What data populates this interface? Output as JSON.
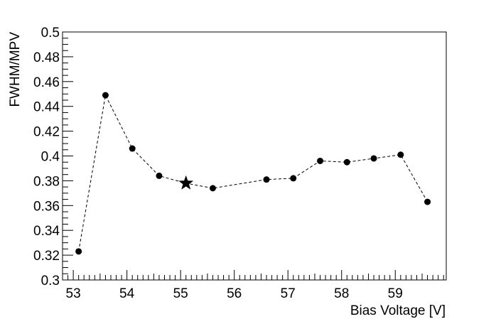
{
  "chart_data": {
    "type": "scatter",
    "title": "",
    "xlabel": "Bias Voltage [V]",
    "ylabel": "FWHM/MPV",
    "xlim": [
      52.8,
      59.95
    ],
    "ylim": [
      0.3,
      0.5
    ],
    "x_ticks": [
      "53",
      "54",
      "55",
      "56",
      "57",
      "58",
      "59"
    ],
    "y_ticks": [
      "0.3",
      "0.32",
      "0.34",
      "0.36",
      "0.38",
      "0.4",
      "0.42",
      "0.44",
      "0.46",
      "0.48",
      "0.5"
    ],
    "grid": false,
    "line_style": "dashed",
    "series": [
      {
        "marker": "circle",
        "x": [
          53.1,
          53.6,
          54.1,
          54.6,
          55.6,
          56.6,
          57.1,
          57.6,
          58.1,
          58.6,
          59.1,
          59.6
        ],
        "y": [
          0.323,
          0.449,
          0.406,
          0.384,
          0.374,
          0.381,
          0.382,
          0.396,
          0.395,
          0.398,
          0.401,
          0.363
        ]
      },
      {
        "marker": "star",
        "x": [
          55.1
        ],
        "y": [
          0.378
        ]
      }
    ],
    "colors": {
      "marker": "#000000",
      "line": "#000000",
      "axis": "#000000"
    }
  }
}
